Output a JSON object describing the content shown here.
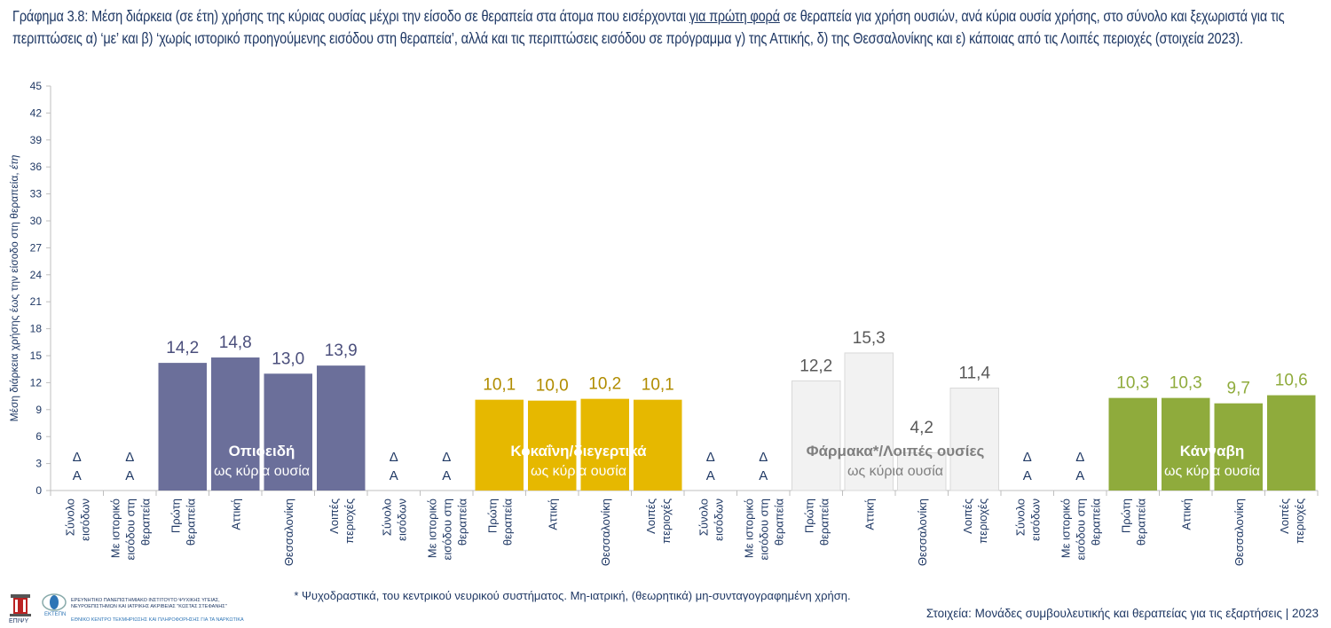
{
  "title": {
    "before": "Γράφημα 3.8: Μέση διάρκεια (σε έτη) χρήσης της κύριας ουσίας μέχρι την είσοδο σε θεραπεία στα άτομα που εισέρχονται ",
    "underlined": "για πρώτη φορά",
    "after": " σε θεραπεία για χρήση ουσιών, ανά κύρια ουσία χρήσης, στο σύνολο και ξεχωριστά για τις περιπτώσεις α) ‘με’ και β) ‘χωρίς ιστορικό προηγούμενης εισόδου στη θεραπεία’, αλλά και τις περιπτώσεις εισόδου σε πρόγραμμα γ) της Αττικής, δ) της Θεσσαλονίκης και ε) κάποιας από τις Λοιπές περιοχές (στοιχεία 2023)."
  },
  "chart_data": {
    "type": "bar",
    "ylabel": "Μέση διάρκεια χρήσης έως την είσοδο στη θεραπεία,",
    "ylabel_unit": "έτη",
    "ylim": [
      0,
      45
    ],
    "yticks": [
      0,
      3,
      6,
      9,
      12,
      15,
      18,
      21,
      24,
      27,
      30,
      33,
      36,
      39,
      42,
      45
    ],
    "grid": false,
    "categories": [
      [
        "Σύνολο",
        "εισόδων"
      ],
      [
        "Με ιστορικό",
        "εισόδου στη",
        "θεραπεία"
      ],
      [
        "Πρώτη",
        "θεραπεία"
      ],
      [
        "Αττική"
      ],
      [
        "Θεσσαλονίκη"
      ],
      [
        "Λοιπές",
        "περιοχές"
      ]
    ],
    "na_label": [
      "Δ",
      "Α"
    ],
    "groups": [
      {
        "name": "Οπιοειδή",
        "sub": "ως κύρια ουσία",
        "color": "#6b6f9a",
        "label_color": "#4b4f7c",
        "text_color": "#ffffff",
        "values": [
          null,
          null,
          14.2,
          14.8,
          13.0,
          13.9
        ]
      },
      {
        "name": "Κοκαΐνη/διεγερτικά",
        "sub": "ως κύρια ουσία",
        "color": "#e6b800",
        "label_color": "#b08c00",
        "text_color": "#ffffff",
        "values": [
          null,
          null,
          10.1,
          10.0,
          10.2,
          10.1
        ]
      },
      {
        "name": "Φάρμακα*/Λοιπές ουσίες",
        "sub": "ως κύρια ουσία",
        "color": "#f2f2f2",
        "label_color": "#595959",
        "text_color": "#7f7f7f",
        "values": [
          null,
          null,
          12.2,
          15.3,
          4.2,
          11.4
        ]
      },
      {
        "name": "Κάνναβη",
        "sub": "ως κύρια ουσία",
        "color": "#8fab3c",
        "label_color": "#8fab3c",
        "text_color": "#ffffff",
        "values": [
          null,
          null,
          10.3,
          10.3,
          9.7,
          10.6
        ]
      }
    ]
  },
  "footnote": "* Ψυχοδραστικά, του κεντρικού νευρικού συστήματος. Μη-ιατρική, (θεωρητικά) μη-συνταγογραφημένη χρήση.",
  "source": "Στοιχεία: Μονάδες συμβουλευτικής και θεραπείας για τις εξαρτήσεις | 2023",
  "logos": {
    "epipsy": "ΕΠΙΨΥ",
    "ektepn": "ΕΚΤΕΠΝ",
    "line1": "ΕΡΕΥΝΗΤΙΚΟ ΠΑΝΕΠΙΣΤΗΜΙΑΚΟ ΙΝΣΤΙΤΟΥΤΟ ΨΥΧΙΚΗΣ ΥΓΕΙΑΣ,",
    "line2": "ΝΕΥΡΟΕΠΙΣΤΗΜΩΝ ΚΑΙ ΙΑΤΡΙΚΗΣ ΑΚΡΙΒΕΙΑΣ \"ΚΩΣΤΑΣ ΣΤΕΦΑΝΗΣ\"",
    "line3": "ΕΘΝΙΚΟ ΚΕΝΤΡΟ ΤΕΚΜΗΡΙΩΣΗΣ ΚΑΙ ΠΛΗΡΟΦΟΡΗΣΗΣ ΓΙΑ ΤΑ ΝΑΡΚΩΤΙΚΑ"
  }
}
